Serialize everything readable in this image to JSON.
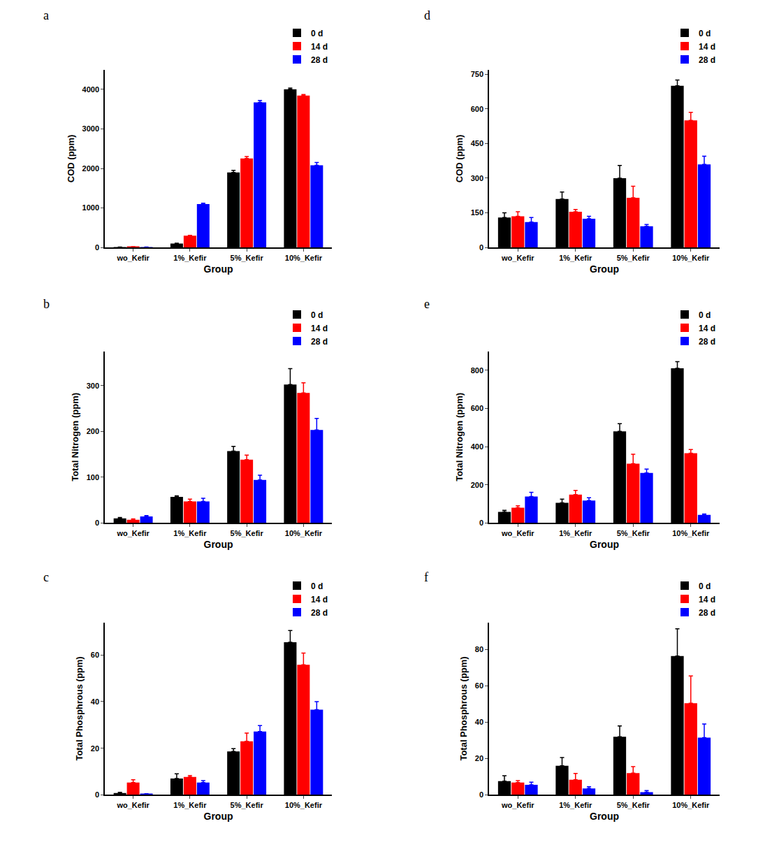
{
  "chart_data": [
    {
      "type": "bar",
      "title": "a",
      "xlabel": "Group",
      "ylabel": "COD (ppm)",
      "categories": [
        "wo_Kefir",
        "1%_Kefir",
        "5%_Kefir",
        "10%_Kefir"
      ],
      "series": [
        {
          "name": "0 d",
          "color": "#000000",
          "values": [
            10,
            100,
            1900,
            4000
          ],
          "errors": [
            5,
            10,
            50,
            30
          ]
        },
        {
          "name": "14 d",
          "color": "#ff0000",
          "values": [
            15,
            300,
            2250,
            3840
          ],
          "errors": [
            5,
            10,
            50,
            30
          ]
        },
        {
          "name": "28 d",
          "color": "#0000ff",
          "values": [
            10,
            1100,
            3670,
            2080
          ],
          "errors": [
            5,
            20,
            50,
            70
          ]
        }
      ],
      "ylim": [
        0,
        4500
      ],
      "yticks": [
        0,
        1000,
        2000,
        3000,
        4000
      ],
      "grid": false,
      "legend": "top right"
    },
    {
      "type": "bar",
      "title": "b",
      "xlabel": "Group",
      "ylabel": "Total Nitrogen (ppm)",
      "categories": [
        "wo_Kefir",
        "1%_Kefir",
        "5%_Kefir",
        "10%_Kefir"
      ],
      "series": [
        {
          "name": "0 d",
          "color": "#000000",
          "values": [
            10,
            57,
            157,
            302
          ],
          "errors": [
            2,
            2,
            10,
            35
          ]
        },
        {
          "name": "14 d",
          "color": "#ff0000",
          "values": [
            7,
            47,
            138,
            284
          ],
          "errors": [
            2,
            5,
            10,
            22
          ]
        },
        {
          "name": "28 d",
          "color": "#0000ff",
          "values": [
            14,
            47,
            94,
            203
          ],
          "errors": [
            2,
            7,
            10,
            25
          ]
        }
      ],
      "ylim": [
        0,
        375
      ],
      "yticks": [
        0,
        100,
        200,
        300
      ],
      "grid": false,
      "legend": "top right"
    },
    {
      "type": "bar",
      "title": "c",
      "xlabel": "Group",
      "ylabel": "Total Phosphrous (ppm)",
      "categories": [
        "wo_Kefir",
        "1%_Kefir",
        "5%_Kefir",
        "10%_Kefir"
      ],
      "series": [
        {
          "name": "0 d",
          "color": "#000000",
          "values": [
            0.8,
            7,
            18.6,
            65.5
          ],
          "errors": [
            0.3,
            2,
            1.2,
            5
          ]
        },
        {
          "name": "14 d",
          "color": "#ff0000",
          "values": [
            5.3,
            7.7,
            23,
            55.8
          ],
          "errors": [
            1.2,
            0.6,
            3.5,
            5
          ]
        },
        {
          "name": "28 d",
          "color": "#0000ff",
          "values": [
            0.3,
            5.3,
            27.2,
            36.5
          ],
          "errors": [
            0.2,
            0.8,
            2.5,
            3.5
          ]
        }
      ],
      "ylim": [
        0,
        74
      ],
      "yticks": [
        0,
        20,
        40,
        60
      ],
      "grid": false,
      "legend": "top right"
    },
    {
      "type": "bar",
      "title": "d",
      "xlabel": "Group",
      "ylabel": "COD (ppm)",
      "categories": [
        "wo_Kefir",
        "1%_Kefir",
        "5%_Kefir",
        "10%_Kefir"
      ],
      "series": [
        {
          "name": "0 d",
          "color": "#000000",
          "values": [
            130,
            210,
            300,
            700
          ],
          "errors": [
            20,
            30,
            55,
            25
          ]
        },
        {
          "name": "14 d",
          "color": "#ff0000",
          "values": [
            135,
            155,
            215,
            550
          ],
          "errors": [
            20,
            10,
            50,
            35
          ]
        },
        {
          "name": "28 d",
          "color": "#0000ff",
          "values": [
            110,
            125,
            92,
            360
          ],
          "errors": [
            20,
            10,
            8,
            35
          ]
        }
      ],
      "ylim": [
        0,
        770
      ],
      "yticks": [
        0,
        150,
        300,
        450,
        600,
        750
      ],
      "grid": false,
      "legend": "top right"
    },
    {
      "type": "bar",
      "title": "e",
      "xlabel": "Group",
      "ylabel": "Total Nitrogen (ppm)",
      "categories": [
        "wo_Kefir",
        "1%_Kefir",
        "5%_Kefir",
        "10%_Kefir"
      ],
      "series": [
        {
          "name": "0 d",
          "color": "#000000",
          "values": [
            58,
            105,
            480,
            810
          ],
          "errors": [
            8,
            20,
            40,
            35
          ]
        },
        {
          "name": "14 d",
          "color": "#ff0000",
          "values": [
            80,
            148,
            310,
            365
          ],
          "errors": [
            10,
            22,
            50,
            20
          ]
        },
        {
          "name": "28 d",
          "color": "#0000ff",
          "values": [
            138,
            117,
            262,
            42
          ],
          "errors": [
            22,
            15,
            20,
            5
          ]
        }
      ],
      "ylim": [
        0,
        900
      ],
      "yticks": [
        0,
        200,
        400,
        600,
        800
      ],
      "grid": false,
      "legend": "top right"
    },
    {
      "type": "bar",
      "title": "f",
      "xlabel": "Group",
      "ylabel": "Total Phosphrous (ppm)",
      "categories": [
        "wo_Kefir",
        "1%_Kefir",
        "5%_Kefir",
        "10%_Kefir"
      ],
      "series": [
        {
          "name": "0 d",
          "color": "#000000",
          "values": [
            7.5,
            16,
            32,
            76.5
          ],
          "errors": [
            3,
            4.5,
            6,
            15
          ]
        },
        {
          "name": "14 d",
          "color": "#ff0000",
          "values": [
            6.8,
            8.3,
            12,
            50.5
          ],
          "errors": [
            1,
            3.5,
            3.5,
            15
          ]
        },
        {
          "name": "28 d",
          "color": "#0000ff",
          "values": [
            5.5,
            3.5,
            1.5,
            31.5
          ],
          "errors": [
            1.5,
            1,
            0.8,
            7.5
          ]
        }
      ],
      "ylim": [
        0,
        95
      ],
      "yticks": [
        0,
        20,
        40,
        60,
        80
      ],
      "grid": false,
      "legend": "top right"
    }
  ]
}
